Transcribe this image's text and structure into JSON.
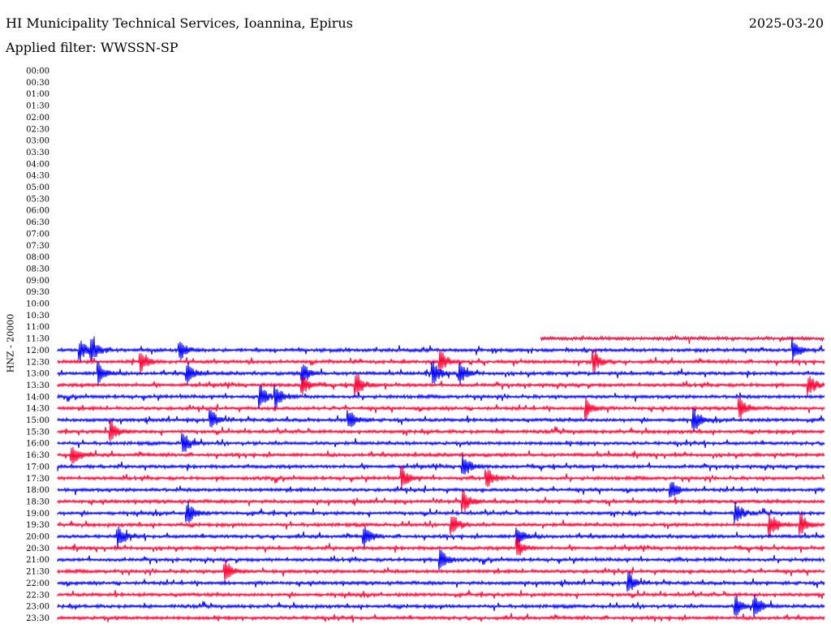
{
  "header": {
    "station": "HI Municipality Technical Services, Ioannina, Epirus",
    "date": "2025-03-20",
    "filter": "Applied filter: WWSSN-SP"
  },
  "chart_data": {
    "type": "line",
    "title": "HI Municipality Technical Services, Ioannina, Epirus",
    "subtitle": "Applied filter: WWSSN-SP",
    "ylabel": "HNZ - 20000",
    "row_interval_minutes": 30,
    "colors": [
      "#0000ff",
      "#ff0033"
    ],
    "rows": [
      {
        "time": "00:00",
        "has_data": false
      },
      {
        "time": "00:30",
        "has_data": false
      },
      {
        "time": "01:00",
        "has_data": false
      },
      {
        "time": "01:30",
        "has_data": false
      },
      {
        "time": "02:00",
        "has_data": false
      },
      {
        "time": "02:30",
        "has_data": false
      },
      {
        "time": "03:00",
        "has_data": false
      },
      {
        "time": "03:30",
        "has_data": false
      },
      {
        "time": "04:00",
        "has_data": false
      },
      {
        "time": "04:30",
        "has_data": false
      },
      {
        "time": "05:00",
        "has_data": false
      },
      {
        "time": "05:30",
        "has_data": false
      },
      {
        "time": "06:00",
        "has_data": false
      },
      {
        "time": "06:30",
        "has_data": false
      },
      {
        "time": "07:00",
        "has_data": false
      },
      {
        "time": "07:30",
        "has_data": false
      },
      {
        "time": "08:00",
        "has_data": false
      },
      {
        "time": "08:30",
        "has_data": false
      },
      {
        "time": "09:00",
        "has_data": false
      },
      {
        "time": "09:30",
        "has_data": false
      },
      {
        "time": "10:00",
        "has_data": false
      },
      {
        "time": "10:30",
        "has_data": false
      },
      {
        "time": "11:00",
        "has_data": false
      },
      {
        "time": "11:30",
        "has_data": true,
        "start_fraction": 0.63
      },
      {
        "time": "12:00",
        "has_data": true
      },
      {
        "time": "12:30",
        "has_data": true
      },
      {
        "time": "13:00",
        "has_data": true
      },
      {
        "time": "13:30",
        "has_data": true
      },
      {
        "time": "14:00",
        "has_data": true
      },
      {
        "time": "14:30",
        "has_data": true
      },
      {
        "time": "15:00",
        "has_data": true
      },
      {
        "time": "15:30",
        "has_data": true
      },
      {
        "time": "16:00",
        "has_data": true
      },
      {
        "time": "16:30",
        "has_data": true
      },
      {
        "time": "17:00",
        "has_data": true
      },
      {
        "time": "17:30",
        "has_data": true
      },
      {
        "time": "18:00",
        "has_data": true
      },
      {
        "time": "18:30",
        "has_data": true
      },
      {
        "time": "19:00",
        "has_data": true
      },
      {
        "time": "19:30",
        "has_data": true
      },
      {
        "time": "20:00",
        "has_data": true
      },
      {
        "time": "20:30",
        "has_data": true
      },
      {
        "time": "21:00",
        "has_data": true
      },
      {
        "time": "21:30",
        "has_data": true
      },
      {
        "time": "22:00",
        "has_data": true
      },
      {
        "time": "22:30",
        "has_data": true
      },
      {
        "time": "23:00",
        "has_data": true
      },
      {
        "time": "23:30",
        "has_data": true
      }
    ],
    "events": [
      {
        "time": "12:00",
        "pos": 0.03
      },
      {
        "time": "12:00",
        "pos": 0.045
      },
      {
        "time": "12:00",
        "pos": 0.16
      },
      {
        "time": "12:00",
        "pos": 0.96
      },
      {
        "time": "12:30",
        "pos": 0.11
      },
      {
        "time": "12:30",
        "pos": 0.5
      },
      {
        "time": "12:30",
        "pos": 0.7
      },
      {
        "time": "13:00",
        "pos": 0.055
      },
      {
        "time": "13:00",
        "pos": 0.17
      },
      {
        "time": "13:00",
        "pos": 0.32
      },
      {
        "time": "13:00",
        "pos": 0.49
      },
      {
        "time": "13:00",
        "pos": 0.525
      },
      {
        "time": "13:30",
        "pos": 0.32
      },
      {
        "time": "13:30",
        "pos": 0.39
      },
      {
        "time": "13:30",
        "pos": 0.98
      },
      {
        "time": "14:00",
        "pos": 0.265
      },
      {
        "time": "14:00",
        "pos": 0.285
      },
      {
        "time": "14:30",
        "pos": 0.69
      },
      {
        "time": "14:30",
        "pos": 0.89
      },
      {
        "time": "15:00",
        "pos": 0.2
      },
      {
        "time": "15:00",
        "pos": 0.38
      },
      {
        "time": "15:00",
        "pos": 0.83
      },
      {
        "time": "15:30",
        "pos": 0.07
      },
      {
        "time": "16:00",
        "pos": 0.165
      },
      {
        "time": "16:30",
        "pos": 0.02
      },
      {
        "time": "17:00",
        "pos": 0.53
      },
      {
        "time": "17:30",
        "pos": 0.45
      },
      {
        "time": "17:30",
        "pos": 0.56
      },
      {
        "time": "18:00",
        "pos": 0.8
      },
      {
        "time": "18:30",
        "pos": 0.53
      },
      {
        "time": "19:00",
        "pos": 0.17
      },
      {
        "time": "19:00",
        "pos": 0.885
      },
      {
        "time": "19:30",
        "pos": 0.515
      },
      {
        "time": "19:30",
        "pos": 0.93
      },
      {
        "time": "19:30",
        "pos": 0.97
      },
      {
        "time": "20:00",
        "pos": 0.08
      },
      {
        "time": "20:00",
        "pos": 0.4
      },
      {
        "time": "20:00",
        "pos": 0.6
      },
      {
        "time": "20:30",
        "pos": 0.6
      },
      {
        "time": "21:00",
        "pos": 0.5
      },
      {
        "time": "21:30",
        "pos": 0.22
      },
      {
        "time": "22:00",
        "pos": 0.745
      },
      {
        "time": "23:00",
        "pos": 0.885
      },
      {
        "time": "23:00",
        "pos": 0.91
      }
    ],
    "grid": false,
    "legend": "none"
  }
}
